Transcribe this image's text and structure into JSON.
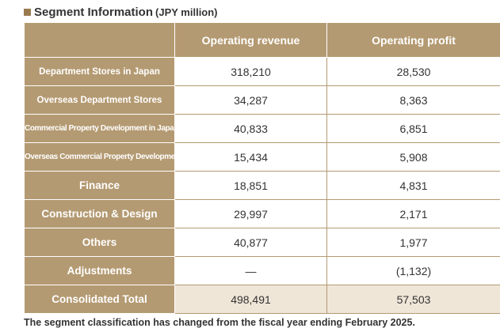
{
  "title": {
    "main": "Segment Information",
    "unit": "(JPY million)"
  },
  "table": {
    "columns": [
      "",
      "Operating revenue",
      "Operating profit"
    ],
    "rows": [
      {
        "segment": "Department Stores in Japan",
        "revenue": "318,210",
        "profit": "28,530"
      },
      {
        "segment": "Overseas Department Stores",
        "revenue": "34,287",
        "profit": "8,363"
      },
      {
        "segment": "Commercial Property Development in Japan",
        "revenue": "40,833",
        "profit": "6,851"
      },
      {
        "segment": "Overseas Commercial Property Development",
        "revenue": "15,434",
        "profit": "5,908"
      },
      {
        "segment": "Finance",
        "revenue": "18,851",
        "profit": "4,831"
      },
      {
        "segment": "Construction & Design",
        "revenue": "29,997",
        "profit": "2,171"
      },
      {
        "segment": "Others",
        "revenue": "40,877",
        "profit": "1,977"
      },
      {
        "segment": "Adjustments",
        "revenue": "—",
        "profit": "(1,132)"
      },
      {
        "segment": "Consolidated Total",
        "revenue": "498,491",
        "profit": "57,503"
      }
    ]
  },
  "footnote": "The segment classification has changed from the fiscal year ending February 2025."
}
